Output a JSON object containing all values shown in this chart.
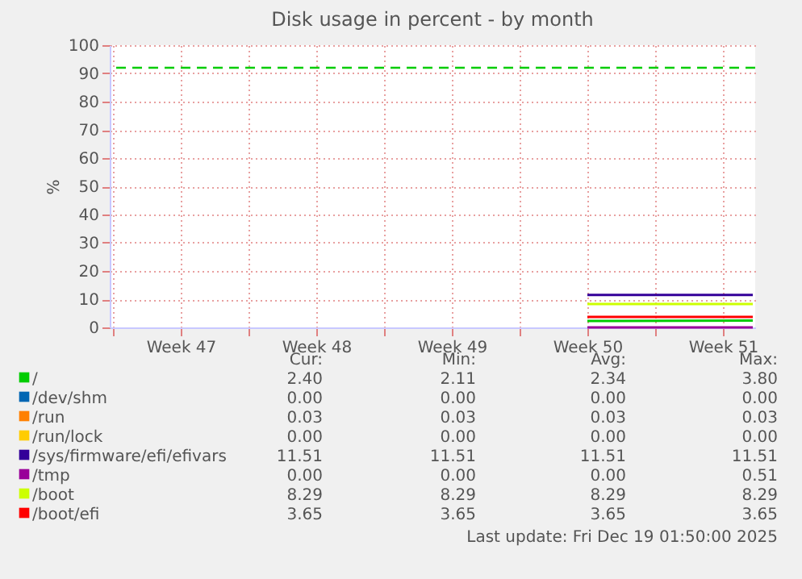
{
  "chart_data": {
    "type": "line",
    "title": "Disk usage in percent - by month",
    "ylabel": "%",
    "x": [
      "2025-12-11T12:00",
      "2025-12-20T01:00"
    ],
    "xlim": [
      "2025-11-16T20:00",
      "2025-12-20T04:00"
    ],
    "xticks": [
      {
        "value": "2025-11-17",
        "label": null
      },
      {
        "value": "2025-11-20T12:00",
        "label": "Week 47"
      },
      {
        "value": "2025-11-24",
        "label": null
      },
      {
        "value": "2025-11-27T12:00",
        "label": "Week 48"
      },
      {
        "value": "2025-12-01",
        "label": null
      },
      {
        "value": "2025-12-04T12:00",
        "label": "Week 49"
      },
      {
        "value": "2025-12-08",
        "label": null
      },
      {
        "value": "2025-12-11T12:00",
        "label": "Week 50"
      },
      {
        "value": "2025-12-15",
        "label": null
      },
      {
        "value": "2025-12-18T12:00",
        "label": "Week 51"
      }
    ],
    "ylim": [
      0,
      100
    ],
    "yticks": [
      0,
      10,
      20,
      30,
      40,
      50,
      60,
      70,
      80,
      90,
      100
    ],
    "grid": true,
    "legend": "bottom",
    "line_style": "solid",
    "marker": "none",
    "series": [
      {
        "name": "/",
        "color": "#00cc00",
        "values": [
          2.3,
          2.4
        ]
      },
      {
        "name": "/dev/shm",
        "color": "#0066b3",
        "values": [
          null,
          null
        ]
      },
      {
        "name": "/run",
        "color": "#ff8000",
        "values": [
          null,
          null
        ]
      },
      {
        "name": "/run/lock",
        "color": "#ffcc00",
        "values": [
          null,
          null
        ]
      },
      {
        "name": "/sys/firmware/efi/efivars",
        "color": "#330099",
        "values": [
          11.5,
          11.5
        ]
      },
      {
        "name": "/tmp",
        "color": "#990099",
        "values": [
          0,
          0
        ]
      },
      {
        "name": "/boot",
        "color": "#ccff00",
        "values": [
          8.3,
          8.3
        ]
      },
      {
        "name": "/boot/efi",
        "color": "#ff0000",
        "values": [
          3.7,
          3.7
        ]
      }
    ],
    "ref_lines": [
      {
        "axis": "y",
        "value": 92,
        "label": null,
        "color": "#00cc00",
        "line_style": "dashed"
      }
    ],
    "annotations": [
      "Cur:",
      "Min:",
      "Avg:",
      "Max:",
      "2.40",
      "2.11",
      "2.34",
      "3.80",
      "0.00",
      "0.00",
      "0.00",
      "0.00",
      "0.03",
      "0.03",
      "0.03",
      "0.03",
      "0.00",
      "0.00",
      "0.00",
      "0.00",
      "11.51",
      "11.51",
      "11.51",
      "11.51",
      "0.00",
      "0.00",
      "0.00",
      "0.51",
      "8.29",
      "8.29",
      "8.29",
      "8.29",
      "3.65",
      "3.65",
      "3.65",
      "3.65",
      "Last update: Fri Dec 19 01:50:00 2025"
    ]
  }
}
